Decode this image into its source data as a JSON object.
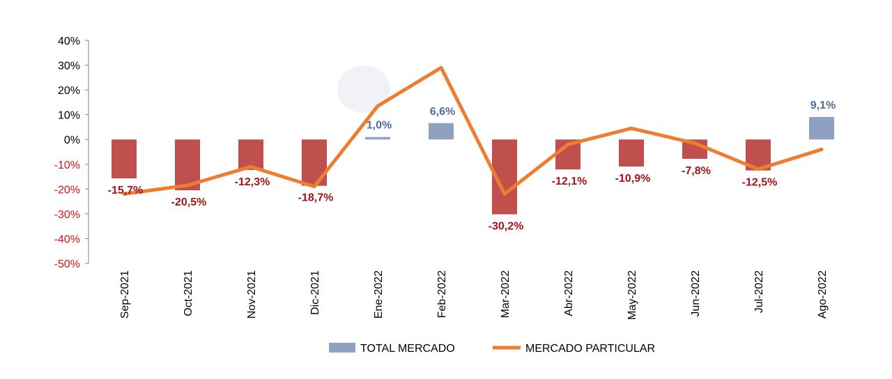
{
  "chart_data": {
    "type": "bar",
    "categories": [
      "Sep-2021",
      "Oct-2021",
      "Nov-2021",
      "Dic-2021",
      "Ene-2022",
      "Feb-2022",
      "Mar-2022",
      "Abr-2022",
      "May-2022",
      "Jun-2022",
      "Jul-2022",
      "Ago-2022"
    ],
    "ylim": [
      -50,
      40
    ],
    "yticks": [
      "40%",
      "30%",
      "20%",
      "10%",
      "0%",
      "-10%",
      "-20%",
      "-30%",
      "-40%",
      "-50%"
    ],
    "grid": false,
    "legend_position": "bottom",
    "series": [
      {
        "name": "TOTAL MERCADO",
        "type": "bar",
        "values": [
          -15.7,
          -20.5,
          -12.3,
          -18.7,
          1.0,
          6.6,
          -30.2,
          -12.1,
          -10.9,
          -7.8,
          -12.5,
          9.1
        ],
        "labels": [
          "-15,7%",
          "-20,5%",
          "-12,3%",
          "-18,7%",
          "1,0%",
          "6,6%",
          "-30,2%",
          "-12,1%",
          "-10,9%",
          "-7,8%",
          "-12,5%",
          "9,1%"
        ]
      },
      {
        "name": "MERCADO PARTICULAR",
        "type": "line",
        "values": [
          -22,
          -18.5,
          -11,
          -19,
          13.5,
          29,
          -22,
          -2,
          4.5,
          -1.5,
          -12,
          -4
        ]
      }
    ]
  },
  "colors": {
    "bar_negative": "#c0504d",
    "bar_positive": "#8ea1c2",
    "line": "#ee7d31",
    "label_negative": "#a31515",
    "label_positive": "#4f6d99",
    "tick_negative": "#e01010",
    "tick_positive": "#000000",
    "axis": "#808080"
  }
}
